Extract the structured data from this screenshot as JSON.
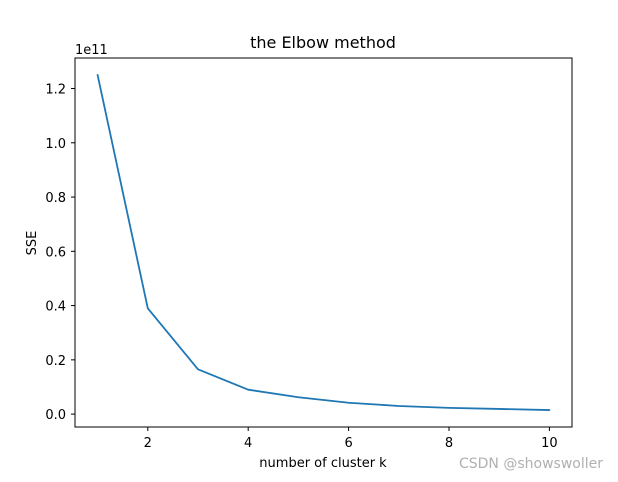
{
  "chart_data": {
    "type": "line",
    "title": "the Elbow method",
    "xlabel": "number of cluster k",
    "ylabel": "SSE",
    "y_offset_text": "1e11",
    "x": [
      1,
      2,
      3,
      4,
      5,
      6,
      7,
      8,
      9,
      10
    ],
    "series": [
      {
        "values": [
          1.25,
          0.39,
          0.165,
          0.09,
          0.062,
          0.042,
          0.03,
          0.023,
          0.019,
          0.015
        ],
        "color": "#1f77b4"
      }
    ],
    "xlim": [
      0.55,
      10.45
    ],
    "ylim": [
      -0.0475,
      1.3125
    ],
    "xticks": [
      2,
      4,
      6,
      8,
      10
    ],
    "yticks": [
      0.0,
      0.2,
      0.4,
      0.6,
      0.8,
      1.0,
      1.2
    ],
    "xtick_labels": [
      "2",
      "4",
      "6",
      "8",
      "10"
    ],
    "ytick_labels": [
      "0.0",
      "0.2",
      "0.4",
      "0.6",
      "0.8",
      "1.0",
      "1.2"
    ],
    "grid": false,
    "legend": "none"
  },
  "watermark": "CSDN @showswoller"
}
